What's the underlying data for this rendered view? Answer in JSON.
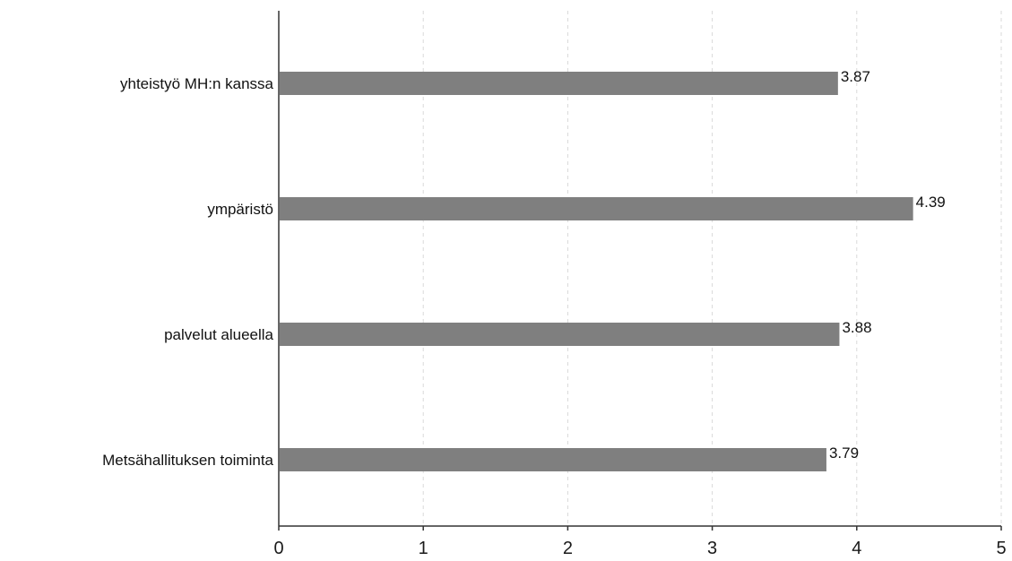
{
  "chart_data": {
    "type": "bar",
    "orientation": "horizontal",
    "categories": [
      "yhteistyö MH:n kanssa",
      "ympäristö",
      "palvelut alueella",
      "Metsähallituksen toiminta"
    ],
    "values": [
      3.87,
      4.39,
      3.88,
      3.79
    ],
    "data_labels": [
      "3.87",
      "4.39",
      "3.88",
      "3.79"
    ],
    "x_ticks": [
      "0",
      "1",
      "2",
      "3",
      "4",
      "5"
    ],
    "xlim": [
      0,
      5
    ],
    "grid": "vertical-dashed",
    "bar_color": "#7f7f7f",
    "grid_color": "#d9d9d9",
    "axis_color": "#333333"
  }
}
